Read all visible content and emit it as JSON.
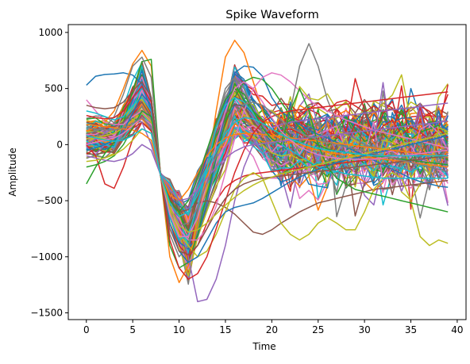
{
  "chart_data": {
    "type": "line",
    "title": "Spike Waveform",
    "xlabel": "Time",
    "ylabel": "Amplitude",
    "xlim": [
      -1.95,
      40.95
    ],
    "ylim": [
      -1560,
      1070
    ],
    "x_ticks": [
      0,
      5,
      10,
      15,
      20,
      25,
      30,
      35,
      40
    ],
    "y_ticks": [
      -1500,
      -1000,
      -500,
      0,
      500,
      1000
    ],
    "grid": false,
    "legend": "none",
    "x": [
      0,
      1,
      2,
      3,
      4,
      5,
      6,
      7,
      8,
      9,
      10,
      11,
      12,
      13,
      14,
      15,
      16,
      17,
      18,
      19,
      20,
      21,
      22,
      23,
      24,
      25,
      26,
      27,
      28,
      29,
      30,
      31,
      32,
      33,
      34,
      35,
      36,
      37,
      38,
      39
    ],
    "palette": [
      "#1f77b4",
      "#ff7f0e",
      "#2ca02c",
      "#d62728",
      "#9467bd",
      "#8c564b",
      "#e377c2",
      "#7f7f7f",
      "#bcbd22",
      "#17becf"
    ],
    "series_count": 120,
    "series": [
      {
        "values": [
          530,
          610,
          625,
          630,
          640,
          620,
          540,
          300,
          -270,
          -640,
          -870,
          -930,
          -820,
          -520,
          -120,
          320,
          640,
          700,
          690,
          610,
          420,
          300,
          230,
          180,
          130,
          90,
          60,
          20,
          -20,
          -60,
          -100,
          -140,
          -180,
          -220,
          -260,
          -300,
          -330,
          -350,
          -370,
          -380
        ]
      },
      {
        "values": [
          120,
          150,
          200,
          300,
          500,
          720,
          840,
          700,
          -270,
          -1000,
          -1230,
          -1080,
          -700,
          -250,
          300,
          780,
          930,
          820,
          560,
          300,
          100,
          50,
          20,
          0,
          -30,
          -50,
          -70,
          -80,
          -90,
          -100,
          -110,
          -120,
          -130,
          -140,
          -150,
          -160,
          -170,
          -180,
          -190,
          -200
        ]
      },
      {
        "values": [
          -350,
          -200,
          -80,
          20,
          200,
          480,
          740,
          760,
          -270,
          -900,
          -1100,
          -1050,
          -800,
          -450,
          -100,
          200,
          420,
          560,
          600,
          580,
          500,
          380,
          260,
          150,
          60,
          0,
          -40,
          -60,
          -70,
          -80,
          -90,
          -100,
          -110,
          -120,
          -130,
          -140,
          -150,
          -160,
          -170,
          -180
        ]
      },
      {
        "values": [
          0,
          -100,
          -350,
          -390,
          -200,
          50,
          200,
          120,
          -270,
          -700,
          -900,
          -1000,
          -900,
          -700,
          -500,
          -380,
          -320,
          -280,
          -260,
          -250,
          -240,
          -230,
          -220,
          -210,
          -200,
          -190,
          -180,
          -170,
          -160,
          -150,
          -140,
          -130,
          -120,
          -110,
          -100,
          -90,
          -80,
          -70,
          -60,
          -50
        ]
      },
      {
        "values": [
          0,
          50,
          100,
          150,
          200,
          250,
          200,
          0,
          -270,
          -500,
          -700,
          -1000,
          -1400,
          -1380,
          -1200,
          -900,
          -500,
          -200,
          0,
          100,
          150,
          180,
          200,
          210,
          220,
          230,
          240,
          250,
          260,
          270,
          280,
          290,
          300,
          310,
          320,
          330,
          340,
          350,
          360,
          370
        ]
      },
      {
        "values": [
          200,
          180,
          160,
          160,
          200,
          300,
          380,
          250,
          -270,
          -500,
          -600,
          -580,
          -520,
          -500,
          -520,
          -560,
          -620,
          -700,
          -780,
          -800,
          -760,
          -700,
          -650,
          -600,
          -560,
          -520,
          -500,
          -480,
          -460,
          -440,
          -420,
          -400,
          -390,
          -380,
          -370,
          -360,
          -350,
          -340,
          -330,
          -320
        ]
      },
      {
        "values": [
          400,
          300,
          200,
          180,
          180,
          250,
          300,
          200,
          -270,
          -550,
          -750,
          -850,
          -850,
          -750,
          -550,
          -250,
          50,
          300,
          500,
          600,
          640,
          620,
          560,
          480,
          400,
          340,
          300,
          260,
          220,
          190,
          160,
          130,
          110,
          90,
          70,
          50,
          30,
          10,
          -10,
          -30
        ]
      },
      {
        "values": [
          100,
          120,
          150,
          250,
          450,
          700,
          780,
          600,
          -270,
          -800,
          -1000,
          -900,
          -600,
          -200,
          200,
          500,
          600,
          500,
          300,
          100,
          0,
          50,
          300,
          700,
          900,
          700,
          400,
          200,
          100,
          50,
          0,
          -20,
          -40,
          -50,
          -60,
          -70,
          -80,
          -90,
          -100,
          -110
        ]
      },
      {
        "values": [
          50,
          60,
          80,
          100,
          150,
          220,
          280,
          200,
          -270,
          -600,
          -800,
          -900,
          -1000,
          -950,
          -800,
          -600,
          -400,
          -300,
          -250,
          -300,
          -500,
          -700,
          -800,
          -850,
          -800,
          -700,
          -650,
          -700,
          -760,
          -760,
          -600,
          -400,
          -300,
          -250,
          -300,
          -500,
          -820,
          -900,
          -850,
          -880
        ]
      },
      {
        "values": [
          300,
          280,
          250,
          220,
          250,
          350,
          420,
          300,
          -270,
          -650,
          -850,
          -800,
          -550,
          -200,
          150,
          350,
          420,
          380,
          280,
          150,
          50,
          0,
          -50,
          -100,
          -150,
          -200,
          -220,
          -240,
          -260,
          -270,
          -280,
          -290,
          -300,
          -300,
          -300,
          -300,
          -300,
          -300,
          -300,
          -300
        ]
      },
      {
        "values": [
          -50,
          -30,
          0,
          40,
          120,
          280,
          450,
          350,
          -270,
          -700,
          -950,
          -1050,
          -1000,
          -850,
          -700,
          -600,
          -560,
          -540,
          -520,
          -480,
          -430,
          -380,
          -330,
          -290,
          -250,
          -220,
          -190,
          -160,
          -140,
          -120,
          -100,
          -80,
          -60,
          -40,
          -20,
          0,
          20,
          40,
          60,
          80
        ]
      },
      {
        "values": [
          180,
          170,
          160,
          150,
          140,
          130,
          100,
          40,
          -270,
          -450,
          -500,
          -400,
          -250,
          -100,
          0,
          60,
          90,
          100,
          100,
          90,
          80,
          70,
          60,
          50,
          40,
          30,
          20,
          10,
          0,
          -10,
          -20,
          -30,
          -40,
          -50,
          -60,
          -70,
          -80,
          -90,
          -100,
          -110
        ]
      },
      {
        "values": [
          -200,
          -180,
          -150,
          -100,
          0,
          150,
          300,
          250,
          -270,
          -500,
          -600,
          -500,
          -300,
          -50,
          200,
          400,
          500,
          450,
          300,
          150,
          50,
          0,
          300,
          500,
          300,
          0,
          -200,
          -300,
          -350,
          -400,
          -420,
          -440,
          -460,
          -480,
          -500,
          -520,
          -540,
          -560,
          -580,
          -600
        ]
      },
      {
        "values": [
          260,
          240,
          230,
          240,
          300,
          420,
          520,
          380,
          -270,
          -850,
          -1100,
          -1200,
          -1150,
          -1000,
          -750,
          -500,
          -250,
          -50,
          100,
          200,
          250,
          280,
          300,
          310,
          320,
          330,
          340,
          350,
          360,
          370,
          380,
          390,
          400,
          410,
          420,
          430,
          440,
          450,
          460,
          470
        ]
      },
      {
        "values": [
          -100,
          -120,
          -140,
          -150,
          -130,
          -80,
          0,
          -50,
          -270,
          -400,
          -500,
          -480,
          -400,
          -300,
          -200,
          -120,
          -60,
          -20,
          0,
          10,
          20,
          30,
          40,
          50,
          60,
          70,
          80,
          90,
          100,
          110,
          120,
          130,
          140,
          150,
          160,
          170,
          180,
          190,
          200,
          210
        ]
      },
      {
        "values": [
          350,
          330,
          320,
          330,
          380,
          480,
          560,
          420,
          -270,
          -750,
          -950,
          -980,
          -900,
          -750,
          -600,
          -480,
          -400,
          -350,
          -320,
          -300,
          -290,
          -280,
          -270,
          -260,
          -250,
          -240,
          -230,
          -220,
          -210,
          -200,
          -190,
          -180,
          -170,
          -160,
          -150,
          -140,
          -130,
          -120,
          -110,
          -100
        ]
      },
      {
        "values": [
          0,
          20,
          40,
          60,
          100,
          170,
          240,
          180,
          -270,
          -620,
          -820,
          -820,
          -650,
          -350,
          0,
          300,
          500,
          560,
          500,
          380,
          240,
          120,
          40,
          -20,
          -60,
          -90,
          -110,
          -120,
          -130,
          -130,
          -130,
          -130,
          -120,
          -110,
          -100,
          -90,
          -80,
          -70,
          -60,
          -50
        ]
      },
      {
        "values": [
          150,
          140,
          130,
          130,
          150,
          190,
          240,
          160,
          -270,
          -560,
          -720,
          -700,
          -560,
          -340,
          -100,
          120,
          280,
          360,
          380,
          350,
          290,
          220,
          160,
          110,
          70,
          40,
          20,
          0,
          -20,
          -40,
          -60,
          -80,
          -100,
          -120,
          -140,
          -160,
          -180,
          -200,
          -220,
          -240
        ]
      },
      {
        "values": [
          -150,
          -140,
          -120,
          -90,
          -40,
          40,
          140,
          100,
          -270,
          -560,
          -720,
          -780,
          -760,
          -700,
          -620,
          -540,
          -470,
          -410,
          -360,
          -320,
          -290,
          -260,
          -240,
          -220,
          -200,
          -180,
          -160,
          -140,
          -120,
          -100,
          -80,
          -60,
          -40,
          -20,
          0,
          20,
          40,
          60,
          80,
          100
        ]
      },
      {
        "values": [
          80,
          60,
          40,
          30,
          40,
          80,
          140,
          100,
          -270,
          -520,
          -640,
          -600,
          -450,
          -250,
          -60,
          100,
          200,
          240,
          230,
          190,
          140,
          90,
          50,
          20,
          -10,
          -30,
          -50,
          -60,
          -70,
          -80,
          -90,
          -100,
          -100,
          -100,
          -100,
          -100,
          -100,
          -100,
          -100,
          -100
        ]
      }
    ]
  }
}
